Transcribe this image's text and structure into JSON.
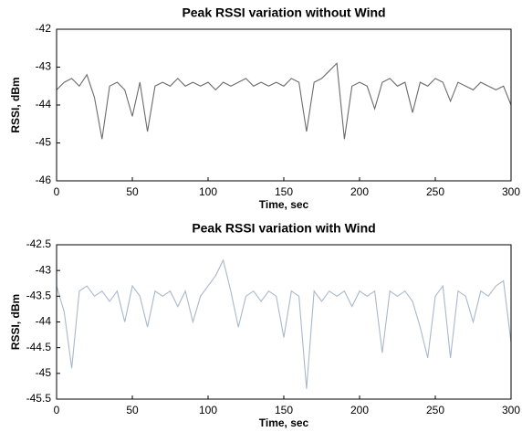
{
  "chart_data": [
    {
      "type": "line",
      "title": "Peak RSSI variation  without Wind",
      "xlabel": "Time, sec",
      "ylabel": "RSSI, dBm",
      "color": "#6b6b6b",
      "x": [
        0,
        5,
        10,
        15,
        20,
        25,
        30,
        35,
        40,
        45,
        50,
        55,
        60,
        65,
        70,
        75,
        80,
        85,
        90,
        95,
        100,
        105,
        110,
        115,
        120,
        125,
        130,
        135,
        140,
        145,
        150,
        155,
        160,
        165,
        170,
        175,
        180,
        185,
        190,
        195,
        200,
        205,
        210,
        215,
        220,
        225,
        230,
        235,
        240,
        245,
        250,
        255,
        260,
        265,
        270,
        275,
        280,
        285,
        290,
        295,
        300
      ],
      "values": [
        -43.6,
        -43.4,
        -43.3,
        -43.5,
        -43.2,
        -43.8,
        -44.9,
        -43.5,
        -43.4,
        -43.6,
        -44.3,
        -43.4,
        -44.7,
        -43.5,
        -43.4,
        -43.5,
        -43.3,
        -43.5,
        -43.4,
        -43.5,
        -43.4,
        -43.6,
        -43.4,
        -43.5,
        -43.4,
        -43.3,
        -43.5,
        -43.4,
        -43.5,
        -43.4,
        -43.5,
        -43.3,
        -43.4,
        -44.7,
        -43.4,
        -43.3,
        -43.1,
        -42.9,
        -44.9,
        -43.5,
        -43.4,
        -43.5,
        -44.1,
        -43.4,
        -43.3,
        -43.5,
        -43.4,
        -44.2,
        -43.4,
        -43.5,
        -43.3,
        -43.4,
        -43.9,
        -43.4,
        -43.5,
        -43.6,
        -43.4,
        -43.5,
        -43.6,
        -43.5,
        -44.0
      ],
      "xlim": [
        0,
        300
      ],
      "xticks": [
        0,
        50,
        100,
        150,
        200,
        250,
        300
      ],
      "ylim": [
        -46,
        -42
      ],
      "yticks": [
        -42,
        -43,
        -44,
        -45,
        -46
      ]
    },
    {
      "type": "line",
      "title": "Peak RSSI variation  with Wind",
      "xlabel": "Time, sec",
      "ylabel": "RSSI, dBm",
      "color": "#a9b8cc",
      "x": [
        0,
        5,
        10,
        15,
        20,
        25,
        30,
        35,
        40,
        45,
        50,
        55,
        60,
        65,
        70,
        75,
        80,
        85,
        90,
        95,
        100,
        105,
        110,
        115,
        120,
        125,
        130,
        135,
        140,
        145,
        150,
        155,
        160,
        165,
        170,
        175,
        180,
        185,
        190,
        195,
        200,
        205,
        210,
        215,
        220,
        225,
        230,
        235,
        240,
        245,
        250,
        255,
        260,
        265,
        270,
        275,
        280,
        285,
        290,
        295,
        300
      ],
      "values": [
        -43.3,
        -43.8,
        -44.9,
        -43.4,
        -43.3,
        -43.5,
        -43.4,
        -43.6,
        -43.4,
        -44.0,
        -43.3,
        -43.5,
        -44.1,
        -43.4,
        -43.5,
        -43.4,
        -43.7,
        -43.4,
        -44.0,
        -43.5,
        -43.3,
        -43.1,
        -42.8,
        -43.4,
        -44.1,
        -43.5,
        -43.4,
        -43.6,
        -43.4,
        -43.5,
        -44.3,
        -43.4,
        -43.5,
        -45.3,
        -43.4,
        -43.6,
        -43.4,
        -43.5,
        -43.4,
        -43.7,
        -43.4,
        -43.5,
        -43.4,
        -44.6,
        -43.4,
        -43.5,
        -43.4,
        -43.6,
        -44.1,
        -44.7,
        -43.5,
        -43.3,
        -44.7,
        -43.4,
        -43.5,
        -44.0,
        -43.4,
        -43.5,
        -43.3,
        -43.2,
        -44.4
      ],
      "xlim": [
        0,
        300
      ],
      "xticks": [
        0,
        50,
        100,
        150,
        200,
        250,
        300
      ],
      "ylim": [
        -45.5,
        -42.5
      ],
      "yticks": [
        -42.5,
        -43,
        -43.5,
        -44,
        -44.5,
        -45,
        -45.5
      ]
    }
  ]
}
